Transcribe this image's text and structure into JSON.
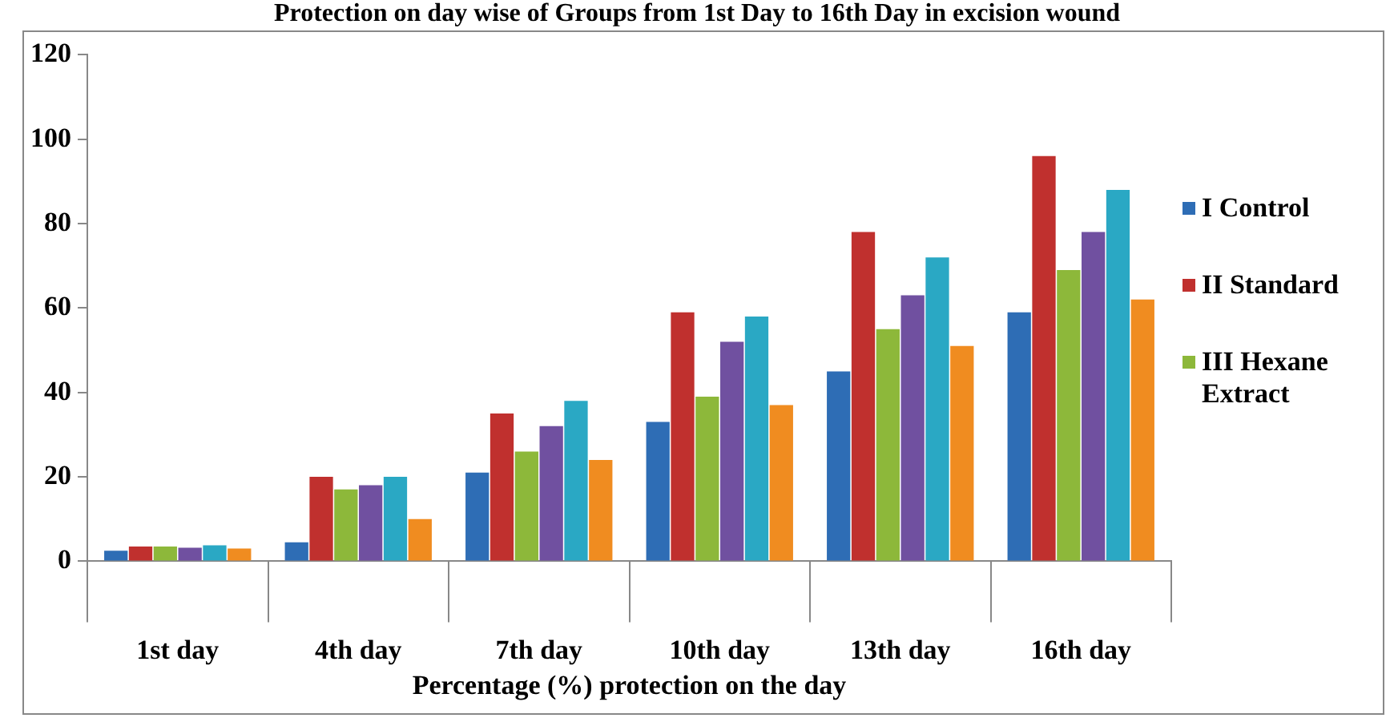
{
  "chart_data": {
    "type": "bar",
    "title": "Protection on day wise of Groups from 1st Day to 16th Day in excision wound",
    "xlabel": "Percentage (%) protection on the day",
    "categories": [
      "1st day",
      "4th day",
      "7th day",
      "10th day",
      "13th day",
      "16th day"
    ],
    "series": [
      {
        "name": "I Control",
        "color": "#2e6db5",
        "values": [
          2.5,
          4.5,
          21,
          33,
          45,
          59
        ]
      },
      {
        "name": "II Standard",
        "color": "#c0302e",
        "values": [
          3.5,
          20,
          35,
          59,
          78,
          96
        ]
      },
      {
        "name": "III Hexane Extract",
        "color": "#8db83a",
        "values": [
          3.5,
          17,
          26,
          39,
          55,
          69
        ]
      },
      {
        "color": "#7050a0",
        "values": [
          3.2,
          18,
          32,
          52,
          63,
          78
        ]
      },
      {
        "color": "#2aa8c4",
        "values": [
          3.8,
          20,
          38,
          58,
          72,
          88
        ]
      },
      {
        "color": "#f08c20",
        "values": [
          3,
          10,
          24,
          37,
          51,
          62
        ]
      }
    ],
    "ylim": [
      0,
      120
    ],
    "yticks": [
      0,
      20,
      40,
      60,
      80,
      100,
      120
    ],
    "grid": false,
    "legend": "right"
  }
}
